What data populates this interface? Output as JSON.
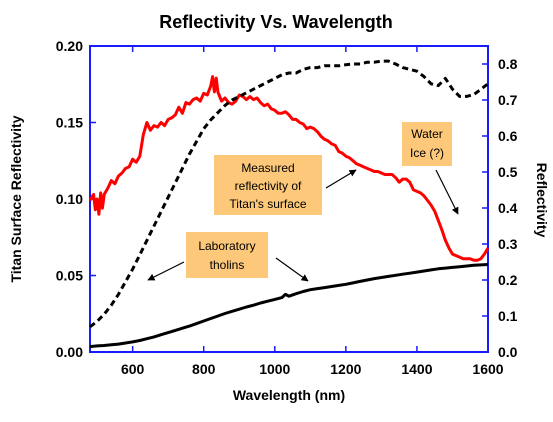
{
  "chart_data": {
    "type": "line",
    "title": "Reflectivity Vs. Wavelength",
    "xlabel": "Wavelength (nm)",
    "ylabel_left": "Titan Surface Reflectivity",
    "ylabel_right": "Reflectivity",
    "xlim": [
      480,
      1600
    ],
    "ylim_left": [
      0.0,
      0.2
    ],
    "ylim_right": [
      0.0,
      0.85
    ],
    "x_ticks": [
      600,
      800,
      1000,
      1200,
      1400,
      1600
    ],
    "x_tick_labels": [
      "600",
      "800",
      "1000",
      "1200",
      "1400",
      "1600"
    ],
    "y_left_ticks": [
      0.0,
      0.05,
      0.1,
      0.15,
      0.2
    ],
    "y_left_tick_labels": [
      "0.00",
      "0.05",
      "0.10",
      "0.15",
      "0.20"
    ],
    "y_right_ticks": [
      0.0,
      0.1,
      0.2,
      0.3,
      0.4,
      0.5,
      0.6,
      0.7,
      0.8
    ],
    "y_right_tick_labels": [
      "0.0",
      "0.1",
      "0.2",
      "0.3",
      "0.4",
      "0.5",
      "0.6",
      "0.7",
      "0.8"
    ],
    "axis_color": "#1a1aff",
    "grid": false,
    "series": [
      {
        "axis": "left",
        "color": "#ff0000",
        "style": "solid",
        "x": [
          480,
          490,
          495,
          500,
          505,
          510,
          515,
          520,
          530,
          540,
          550,
          560,
          570,
          580,
          590,
          600,
          610,
          620,
          630,
          640,
          650,
          660,
          670,
          680,
          690,
          700,
          710,
          720,
          730,
          740,
          750,
          760,
          770,
          780,
          790,
          800,
          810,
          820,
          825,
          830,
          835,
          840,
          850,
          860,
          870,
          880,
          890,
          900,
          910,
          920,
          930,
          940,
          950,
          960,
          970,
          980,
          990,
          1000,
          1010,
          1020,
          1030,
          1040,
          1050,
          1060,
          1070,
          1080,
          1090,
          1100,
          1110,
          1120,
          1130,
          1140,
          1150,
          1160,
          1170,
          1180,
          1190,
          1200,
          1210,
          1220,
          1230,
          1240,
          1250,
          1260,
          1270,
          1280,
          1290,
          1300,
          1310,
          1320,
          1330,
          1340,
          1350,
          1360,
          1370,
          1380,
          1390,
          1400,
          1410,
          1420,
          1430,
          1440,
          1450,
          1460,
          1470,
          1480,
          1490,
          1500,
          1510,
          1520,
          1530,
          1540,
          1550,
          1560,
          1570,
          1580,
          1590,
          1600
        ],
        "y": [
          0.099,
          0.103,
          0.093,
          0.1,
          0.09,
          0.104,
          0.094,
          0.103,
          0.107,
          0.112,
          0.11,
          0.115,
          0.117,
          0.12,
          0.121,
          0.126,
          0.124,
          0.128,
          0.142,
          0.15,
          0.145,
          0.148,
          0.147,
          0.15,
          0.148,
          0.152,
          0.153,
          0.155,
          0.16,
          0.156,
          0.163,
          0.162,
          0.165,
          0.166,
          0.164,
          0.169,
          0.168,
          0.174,
          0.18,
          0.17,
          0.179,
          0.17,
          0.164,
          0.166,
          0.163,
          0.162,
          0.164,
          0.168,
          0.167,
          0.165,
          0.167,
          0.165,
          0.166,
          0.163,
          0.161,
          0.162,
          0.159,
          0.158,
          0.156,
          0.156,
          0.157,
          0.155,
          0.152,
          0.152,
          0.15,
          0.149,
          0.146,
          0.147,
          0.146,
          0.144,
          0.141,
          0.139,
          0.138,
          0.136,
          0.135,
          0.131,
          0.13,
          0.128,
          0.127,
          0.125,
          0.123,
          0.122,
          0.121,
          0.12,
          0.119,
          0.118,
          0.118,
          0.117,
          0.116,
          0.116,
          0.116,
          0.114,
          0.111,
          0.113,
          0.113,
          0.111,
          0.106,
          0.105,
          0.104,
          0.102,
          0.099,
          0.096,
          0.092,
          0.086,
          0.08,
          0.073,
          0.068,
          0.064,
          0.063,
          0.062,
          0.061,
          0.061,
          0.061,
          0.06,
          0.06,
          0.061,
          0.064,
          0.068
        ]
      },
      {
        "axis": "right",
        "color": "#000000",
        "style": "dashed",
        "x": [
          480,
          500,
          520,
          540,
          560,
          580,
          600,
          620,
          640,
          660,
          680,
          700,
          720,
          740,
          760,
          780,
          800,
          820,
          840,
          860,
          880,
          900,
          920,
          940,
          960,
          980,
          1000,
          1020,
          1040,
          1060,
          1080,
          1100,
          1120,
          1140,
          1160,
          1180,
          1200,
          1220,
          1240,
          1260,
          1280,
          1300,
          1320,
          1340,
          1360,
          1380,
          1400,
          1420,
          1440,
          1460,
          1480,
          1500,
          1520,
          1540,
          1560,
          1580,
          1600
        ],
        "y": [
          0.07,
          0.085,
          0.105,
          0.13,
          0.16,
          0.195,
          0.23,
          0.27,
          0.31,
          0.35,
          0.39,
          0.43,
          0.47,
          0.51,
          0.55,
          0.585,
          0.62,
          0.645,
          0.665,
          0.685,
          0.7,
          0.71,
          0.72,
          0.73,
          0.74,
          0.75,
          0.76,
          0.77,
          0.775,
          0.775,
          0.785,
          0.79,
          0.79,
          0.795,
          0.795,
          0.795,
          0.798,
          0.8,
          0.8,
          0.805,
          0.805,
          0.808,
          0.808,
          0.8,
          0.79,
          0.785,
          0.78,
          0.765,
          0.745,
          0.74,
          0.76,
          0.73,
          0.71,
          0.71,
          0.715,
          0.73,
          0.745
        ]
      },
      {
        "axis": "right",
        "color": "#000000",
        "style": "solid",
        "x": [
          480,
          500,
          520,
          540,
          560,
          580,
          600,
          620,
          640,
          660,
          680,
          700,
          720,
          740,
          760,
          780,
          800,
          820,
          840,
          860,
          880,
          900,
          920,
          940,
          960,
          980,
          1000,
          1020,
          1030,
          1040,
          1060,
          1080,
          1100,
          1120,
          1140,
          1160,
          1180,
          1200,
          1220,
          1240,
          1260,
          1280,
          1300,
          1320,
          1340,
          1360,
          1380,
          1400,
          1420,
          1440,
          1460,
          1480,
          1500,
          1520,
          1540,
          1560,
          1580,
          1600
        ],
        "y": [
          0.015,
          0.017,
          0.018,
          0.02,
          0.022,
          0.025,
          0.028,
          0.032,
          0.037,
          0.042,
          0.048,
          0.054,
          0.06,
          0.066,
          0.072,
          0.079,
          0.086,
          0.093,
          0.1,
          0.107,
          0.113,
          0.119,
          0.125,
          0.13,
          0.136,
          0.141,
          0.146,
          0.151,
          0.16,
          0.155,
          0.162,
          0.168,
          0.173,
          0.176,
          0.179,
          0.182,
          0.185,
          0.188,
          0.192,
          0.196,
          0.2,
          0.204,
          0.207,
          0.21,
          0.213,
          0.216,
          0.219,
          0.222,
          0.225,
          0.228,
          0.231,
          0.233,
          0.235,
          0.237,
          0.239,
          0.241,
          0.242,
          0.243
        ]
      }
    ],
    "annotations": [
      {
        "lines": [
          "Water",
          "Ice (?)"
        ],
        "box_color": "#fdc87a",
        "arrow_target": {
          "x": 1530,
          "axis": "left",
          "y": 0.089
        }
      },
      {
        "lines": [
          "Measured",
          "reflectivity of",
          "Titan's surface"
        ],
        "box_color": "#fdc87a",
        "arrow_target": {
          "x": 1180,
          "axis": "left",
          "y": 0.118
        }
      },
      {
        "lines": [
          "Laboratory",
          "tholins"
        ],
        "box_color": "#fdc87a",
        "arrow_targets": [
          {
            "x": 550,
            "axis": "right",
            "y": 0.24
          },
          {
            "x": 1060,
            "axis": "right",
            "y": 0.17
          }
        ]
      }
    ]
  }
}
